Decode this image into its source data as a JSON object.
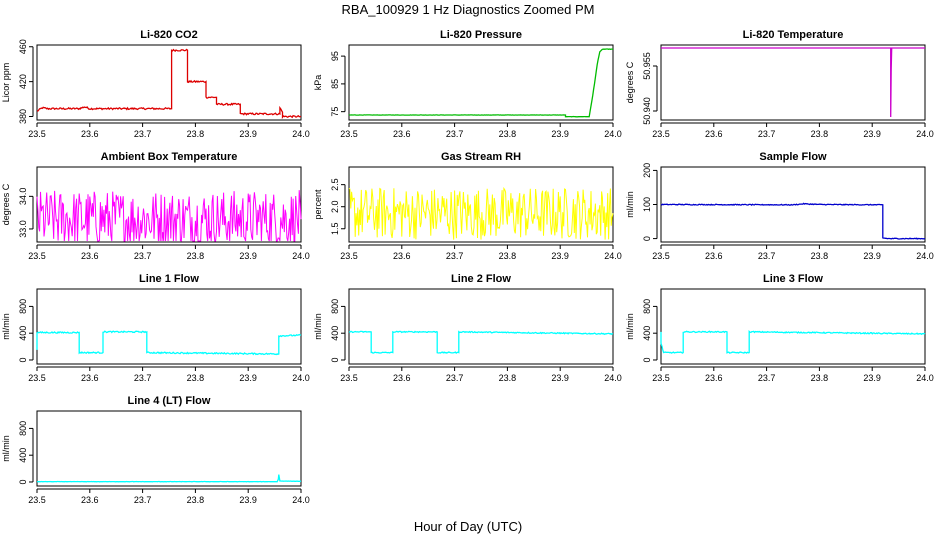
{
  "figure": {
    "title": "RBA_100929  1 Hz Diagnostics Zoomed PM",
    "xlabel": "Hour of Day (UTC)"
  },
  "chart_data": [
    {
      "type": "line",
      "title": "Li-820 CO2",
      "ylabel": "Licor ppm",
      "color": "#dd0000",
      "xlim": [
        23.5,
        24.0
      ],
      "ylim": [
        376,
        462
      ],
      "xticks": [
        23.5,
        23.6,
        23.7,
        23.8,
        23.9,
        24.0
      ],
      "yticks": [
        380,
        420,
        460
      ],
      "series": [
        {
          "x": [
            23.5,
            23.51,
            23.52,
            23.58,
            23.59,
            23.6,
            23.755,
            23.755,
            23.785,
            23.785,
            23.82,
            23.82,
            23.84,
            23.84,
            23.885,
            23.885,
            23.96,
            23.96,
            23.965,
            23.965,
            24.0
          ],
          "y": [
            386,
            390,
            389,
            389,
            391,
            389,
            389,
            456,
            456,
            420,
            420,
            402,
            402,
            394,
            394,
            383,
            383,
            390,
            385,
            380,
            380
          ],
          "noise": 1.0
        }
      ]
    },
    {
      "type": "line",
      "title": "Li-820 Pressure",
      "ylabel": "kPa",
      "color": "#00bb00",
      "xlim": [
        23.5,
        24.0
      ],
      "ylim": [
        72,
        99
      ],
      "xticks": [
        23.5,
        23.6,
        23.7,
        23.8,
        23.9,
        24.0
      ],
      "yticks": [
        75,
        85,
        95
      ],
      "series": [
        {
          "x": [
            23.5,
            23.91,
            23.91,
            23.955,
            23.96,
            23.965,
            23.97,
            23.975,
            23.98,
            24.0
          ],
          "y": [
            73.8,
            73.8,
            73.2,
            73.2,
            79,
            85,
            92,
            96.5,
            97.5,
            97.5
          ],
          "noise": 0.05
        }
      ]
    },
    {
      "type": "line",
      "title": "Li-820 Temperature",
      "ylabel": "degrees C",
      "color": "#cc00cc",
      "xlim": [
        23.5,
        24.0
      ],
      "ylim": [
        50.937,
        50.962
      ],
      "xticks": [
        23.5,
        23.6,
        23.7,
        23.8,
        23.9,
        24.0
      ],
      "yticks": [
        50.94,
        50.955
      ],
      "ytick_labels": [
        "50.940",
        "50.955"
      ],
      "series": [
        {
          "x": [
            23.5,
            23.935,
            23.935,
            23.936,
            23.936,
            23.937,
            23.937,
            24.0
          ],
          "y": [
            50.961,
            50.961,
            50.938,
            50.954,
            50.954,
            50.961,
            50.961,
            50.961
          ],
          "noise": 0
        }
      ]
    },
    {
      "type": "line",
      "title": "Ambient Box Temperature",
      "ylabel": "degrees C",
      "color": "#ff00ff",
      "xlim": [
        23.5,
        24.0
      ],
      "ylim": [
        32.6,
        34.9
      ],
      "xticks": [
        23.5,
        23.6,
        23.7,
        23.8,
        23.9,
        24.0
      ],
      "yticks": [
        33.0,
        34.0
      ],
      "ytick_labels": [
        "33.0",
        "34.0"
      ],
      "series": [
        {
          "x": [
            23.5,
            24.0
          ],
          "y": [
            33.3,
            33.3
          ],
          "noise": 0.9
        }
      ]
    },
    {
      "type": "line",
      "title": "Gas Stream RH",
      "ylabel": "percent",
      "color": "#ffff00",
      "xlim": [
        23.5,
        24.0
      ],
      "ylim": [
        1.2,
        2.9
      ],
      "xticks": [
        23.5,
        23.6,
        23.7,
        23.8,
        23.9,
        24.0
      ],
      "yticks": [
        1.5,
        2.0,
        2.5
      ],
      "ytick_labels": [
        "1.5",
        "2.0",
        "2.5"
      ],
      "series": [
        {
          "x": [
            23.5,
            24.0
          ],
          "y": [
            1.85,
            1.85
          ],
          "noise": 0.6
        }
      ]
    },
    {
      "type": "line",
      "title": "Sample Flow",
      "ylabel": "ml/min",
      "color": "#0000cc",
      "xlim": [
        23.5,
        24.0
      ],
      "ylim": [
        -10,
        210
      ],
      "xticks": [
        23.5,
        23.6,
        23.7,
        23.8,
        23.9,
        24.0
      ],
      "yticks": [
        0,
        100,
        200
      ],
      "series": [
        {
          "x": [
            23.5,
            23.75,
            23.77,
            23.8,
            23.92,
            23.92,
            23.93,
            24.0
          ],
          "y": [
            100,
            99,
            102,
            100,
            99,
            2,
            0,
            0
          ],
          "noise": 1.2
        }
      ]
    },
    {
      "type": "line",
      "title": "Line 1 Flow",
      "ylabel": "ml/min",
      "color": "#00ffff",
      "xlim": [
        23.5,
        24.0
      ],
      "ylim": [
        -60,
        1060
      ],
      "xticks": [
        23.5,
        23.6,
        23.7,
        23.8,
        23.9,
        24.0
      ],
      "yticks": [
        0,
        400,
        800
      ],
      "series": [
        {
          "x": [
            23.5,
            23.5,
            23.58,
            23.58,
            23.625,
            23.625,
            23.708,
            23.708,
            23.958,
            23.958,
            24.0
          ],
          "y": [
            150,
            410,
            410,
            110,
            110,
            420,
            420,
            110,
            90,
            360,
            370
          ],
          "noise": 10
        }
      ]
    },
    {
      "type": "line",
      "title": "Line 2 Flow",
      "ylabel": "ml/min",
      "color": "#00ffff",
      "xlim": [
        23.5,
        24.0
      ],
      "ylim": [
        -60,
        1060
      ],
      "xticks": [
        23.5,
        23.6,
        23.7,
        23.8,
        23.9,
        24.0
      ],
      "yticks": [
        0,
        400,
        800
      ],
      "series": [
        {
          "x": [
            23.5,
            23.542,
            23.542,
            23.583,
            23.583,
            23.667,
            23.667,
            23.708,
            23.708,
            24.0
          ],
          "y": [
            420,
            420,
            110,
            110,
            420,
            420,
            110,
            110,
            420,
            390
          ],
          "noise": 8
        }
      ]
    },
    {
      "type": "line",
      "title": "Line 3 Flow",
      "ylabel": "ml/min",
      "color": "#00ffff",
      "xlim": [
        23.5,
        24.0
      ],
      "ylim": [
        -60,
        1060
      ],
      "xticks": [
        23.5,
        23.6,
        23.7,
        23.8,
        23.9,
        24.0
      ],
      "yticks": [
        0,
        400,
        800
      ],
      "series": [
        {
          "x": [
            23.5,
            23.5,
            23.505,
            23.542,
            23.542,
            23.625,
            23.625,
            23.667,
            23.667,
            24.0
          ],
          "y": [
            420,
            250,
            110,
            110,
            420,
            420,
            110,
            110,
            420,
            390
          ],
          "noise": 8
        }
      ]
    },
    {
      "type": "line",
      "title": "Line 4 (LT) Flow",
      "ylabel": "ml/min",
      "color": "#00ffff",
      "xlim": [
        23.5,
        24.0
      ],
      "ylim": [
        -60,
        1060
      ],
      "xticks": [
        23.5,
        23.6,
        23.7,
        23.8,
        23.9,
        24.0
      ],
      "yticks": [
        0,
        400,
        800
      ],
      "series": [
        {
          "x": [
            23.5,
            23.955,
            23.957,
            23.958,
            23.96,
            24.0
          ],
          "y": [
            5,
            5,
            40,
            110,
            15,
            10
          ],
          "noise": 2
        }
      ]
    }
  ]
}
